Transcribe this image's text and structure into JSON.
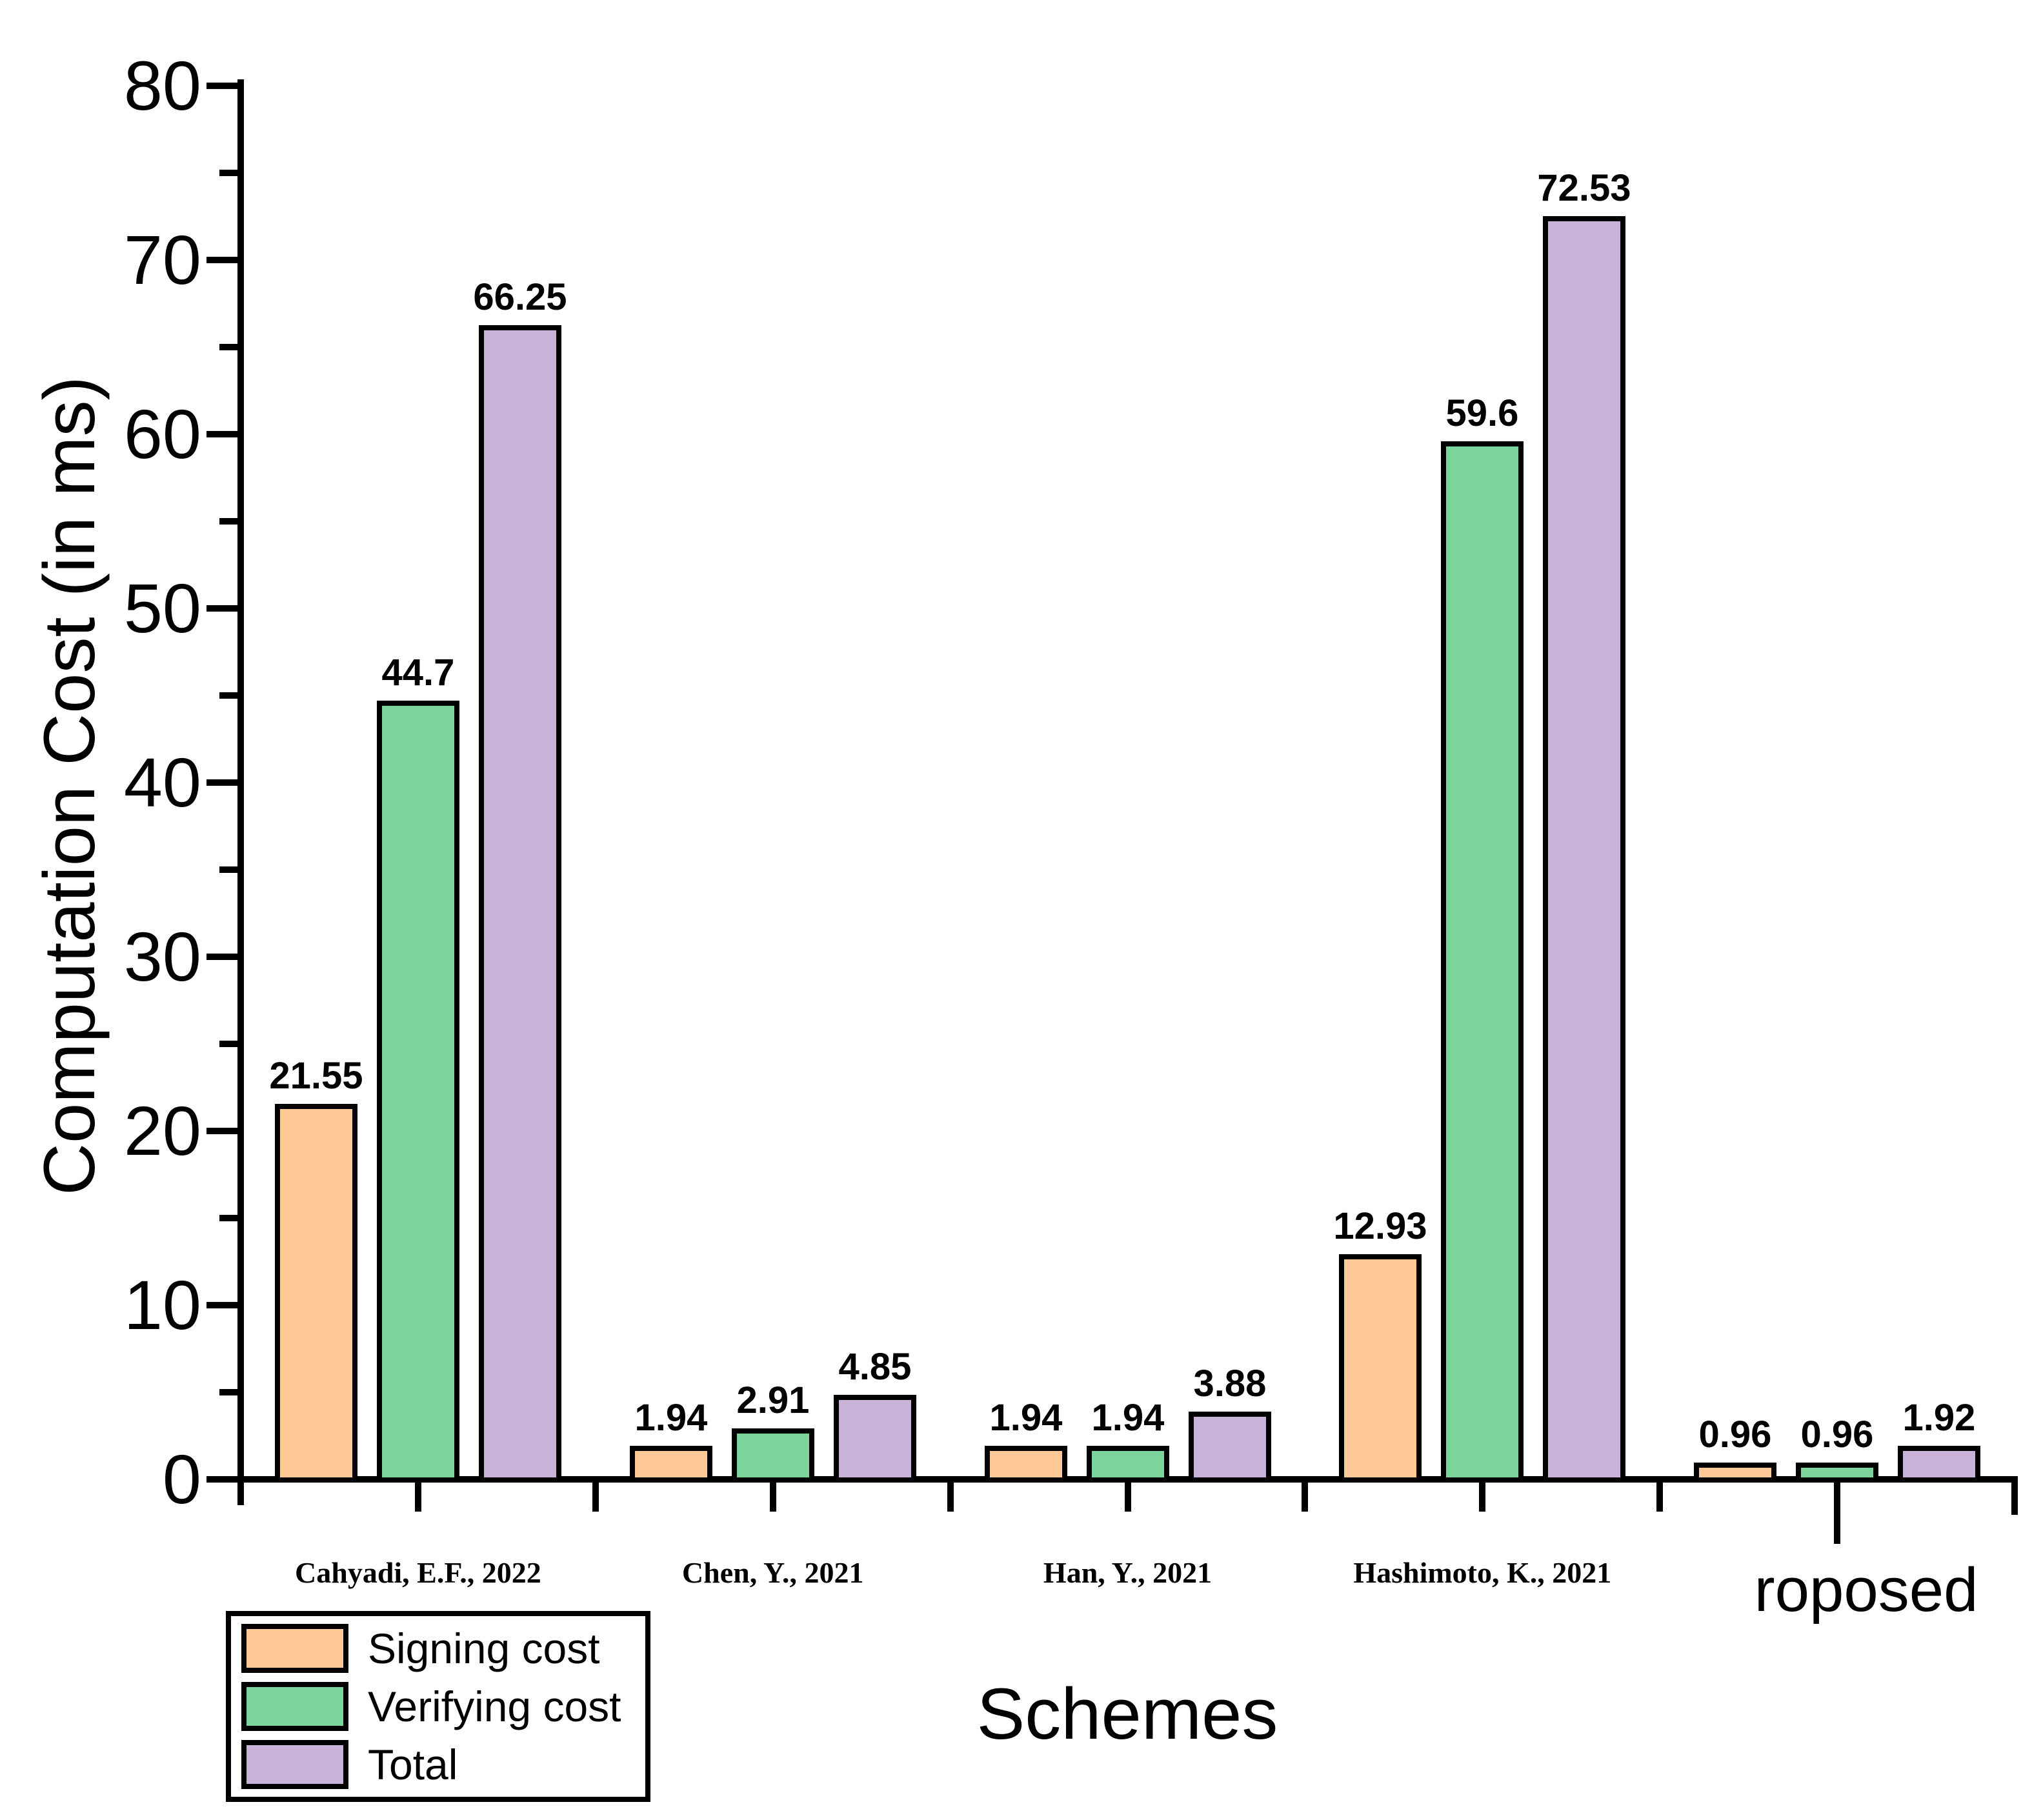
{
  "chart_data": {
    "type": "bar",
    "title": "",
    "xlabel": "Schemes",
    "ylabel": "Computation Cost (in ms)",
    "ylim": [
      0,
      80
    ],
    "y_major_step": 10,
    "y_minor_step": 5,
    "grid": false,
    "legend_position": "bottom-left",
    "categories": [
      "Cahyadi, E.F., 2022",
      "Chen, Y., 2021",
      "Han, Y., 2021",
      "Hashimoto, K., 2021",
      "roposed"
    ],
    "category_label_styles": [
      "serif",
      "serif",
      "serif",
      "serif",
      "sans"
    ],
    "series": [
      {
        "name": "Signing cost",
        "color": "#FEC997",
        "values": [
          21.55,
          1.94,
          1.94,
          12.93,
          0.96
        ]
      },
      {
        "name": "Verifying cost",
        "color": "#7CD69B",
        "values": [
          44.7,
          2.91,
          1.94,
          59.6,
          0.96
        ]
      },
      {
        "name": "Total",
        "color": "#C9B3D8",
        "values": [
          66.25,
          4.85,
          3.88,
          72.53,
          1.92
        ]
      }
    ],
    "bar_value_labels_shown": true,
    "axis_color": "#000000",
    "background_color": "#FFFFFF"
  }
}
